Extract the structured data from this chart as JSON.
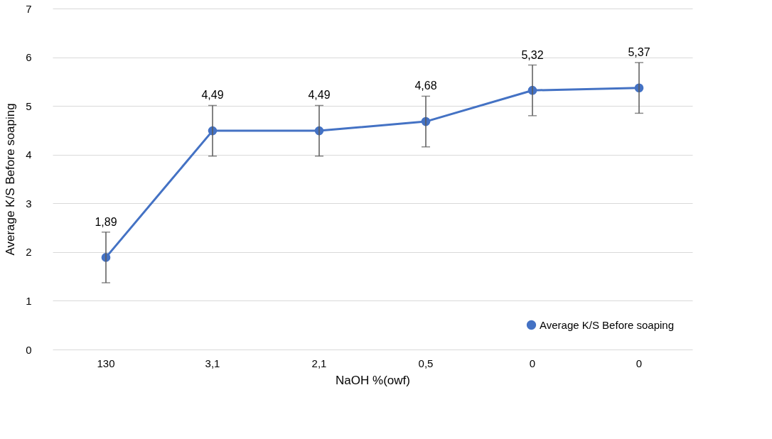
{
  "chart_data": {
    "type": "line",
    "xlabel": "NaOH %(owf)",
    "ylabel": "Average K/S Before soaping",
    "categories": [
      "130",
      "3,1",
      "2,1",
      "0,5",
      "0",
      "0"
    ],
    "series": [
      {
        "name": "Average K/S Before soaping",
        "color": "#4472c4",
        "values": [
          1.89,
          4.49,
          4.49,
          4.68,
          5.32,
          5.37
        ],
        "errors": [
          0.52,
          0.52,
          0.52,
          0.52,
          0.52,
          0.52
        ],
        "value_labels": [
          "1,89",
          "4,49",
          "4,49",
          "4,68",
          "5,32",
          "5,37"
        ]
      }
    ],
    "ylim": [
      0,
      7
    ],
    "yticks": [
      0,
      1,
      2,
      3,
      4,
      5,
      6,
      7
    ],
    "grid": "y",
    "legend": "bottom right",
    "marker": "circle",
    "line_style": "solid"
  }
}
